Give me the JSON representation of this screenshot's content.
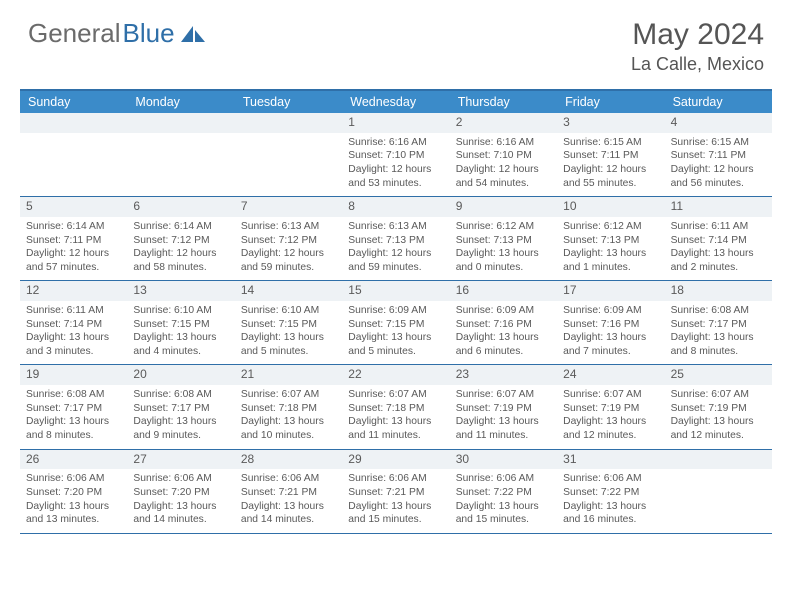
{
  "brand": {
    "part1": "General",
    "part2": "Blue"
  },
  "title": "May 2024",
  "location": "La Calle, Mexico",
  "colors": {
    "header_bg": "#3b8bc9",
    "rule": "#2f6fa8",
    "daynum_bg": "#eef2f5",
    "text": "#595959",
    "title_text": "#555555",
    "brand_gray": "#6b6b6b",
    "brand_blue": "#2f6fa8"
  },
  "day_names": [
    "Sunday",
    "Monday",
    "Tuesday",
    "Wednesday",
    "Thursday",
    "Friday",
    "Saturday"
  ],
  "weeks": [
    [
      null,
      null,
      null,
      {
        "n": "1",
        "sr": "6:16 AM",
        "ss": "7:10 PM",
        "dlh": "12",
        "dlm": "53"
      },
      {
        "n": "2",
        "sr": "6:16 AM",
        "ss": "7:10 PM",
        "dlh": "12",
        "dlm": "54"
      },
      {
        "n": "3",
        "sr": "6:15 AM",
        "ss": "7:11 PM",
        "dlh": "12",
        "dlm": "55"
      },
      {
        "n": "4",
        "sr": "6:15 AM",
        "ss": "7:11 PM",
        "dlh": "12",
        "dlm": "56"
      }
    ],
    [
      {
        "n": "5",
        "sr": "6:14 AM",
        "ss": "7:11 PM",
        "dlh": "12",
        "dlm": "57"
      },
      {
        "n": "6",
        "sr": "6:14 AM",
        "ss": "7:12 PM",
        "dlh": "12",
        "dlm": "58"
      },
      {
        "n": "7",
        "sr": "6:13 AM",
        "ss": "7:12 PM",
        "dlh": "12",
        "dlm": "59"
      },
      {
        "n": "8",
        "sr": "6:13 AM",
        "ss": "7:13 PM",
        "dlh": "12",
        "dlm": "59"
      },
      {
        "n": "9",
        "sr": "6:12 AM",
        "ss": "7:13 PM",
        "dlh": "13",
        "dlm": "0"
      },
      {
        "n": "10",
        "sr": "6:12 AM",
        "ss": "7:13 PM",
        "dlh": "13",
        "dlm": "1"
      },
      {
        "n": "11",
        "sr": "6:11 AM",
        "ss": "7:14 PM",
        "dlh": "13",
        "dlm": "2"
      }
    ],
    [
      {
        "n": "12",
        "sr": "6:11 AM",
        "ss": "7:14 PM",
        "dlh": "13",
        "dlm": "3"
      },
      {
        "n": "13",
        "sr": "6:10 AM",
        "ss": "7:15 PM",
        "dlh": "13",
        "dlm": "4"
      },
      {
        "n": "14",
        "sr": "6:10 AM",
        "ss": "7:15 PM",
        "dlh": "13",
        "dlm": "5"
      },
      {
        "n": "15",
        "sr": "6:09 AM",
        "ss": "7:15 PM",
        "dlh": "13",
        "dlm": "5"
      },
      {
        "n": "16",
        "sr": "6:09 AM",
        "ss": "7:16 PM",
        "dlh": "13",
        "dlm": "6"
      },
      {
        "n": "17",
        "sr": "6:09 AM",
        "ss": "7:16 PM",
        "dlh": "13",
        "dlm": "7"
      },
      {
        "n": "18",
        "sr": "6:08 AM",
        "ss": "7:17 PM",
        "dlh": "13",
        "dlm": "8"
      }
    ],
    [
      {
        "n": "19",
        "sr": "6:08 AM",
        "ss": "7:17 PM",
        "dlh": "13",
        "dlm": "8"
      },
      {
        "n": "20",
        "sr": "6:08 AM",
        "ss": "7:17 PM",
        "dlh": "13",
        "dlm": "9"
      },
      {
        "n": "21",
        "sr": "6:07 AM",
        "ss": "7:18 PM",
        "dlh": "13",
        "dlm": "10"
      },
      {
        "n": "22",
        "sr": "6:07 AM",
        "ss": "7:18 PM",
        "dlh": "13",
        "dlm": "11"
      },
      {
        "n": "23",
        "sr": "6:07 AM",
        "ss": "7:19 PM",
        "dlh": "13",
        "dlm": "11"
      },
      {
        "n": "24",
        "sr": "6:07 AM",
        "ss": "7:19 PM",
        "dlh": "13",
        "dlm": "12"
      },
      {
        "n": "25",
        "sr": "6:07 AM",
        "ss": "7:19 PM",
        "dlh": "13",
        "dlm": "12"
      }
    ],
    [
      {
        "n": "26",
        "sr": "6:06 AM",
        "ss": "7:20 PM",
        "dlh": "13",
        "dlm": "13"
      },
      {
        "n": "27",
        "sr": "6:06 AM",
        "ss": "7:20 PM",
        "dlh": "13",
        "dlm": "14"
      },
      {
        "n": "28",
        "sr": "6:06 AM",
        "ss": "7:21 PM",
        "dlh": "13",
        "dlm": "14"
      },
      {
        "n": "29",
        "sr": "6:06 AM",
        "ss": "7:21 PM",
        "dlh": "13",
        "dlm": "15"
      },
      {
        "n": "30",
        "sr": "6:06 AM",
        "ss": "7:22 PM",
        "dlh": "13",
        "dlm": "15"
      },
      {
        "n": "31",
        "sr": "6:06 AM",
        "ss": "7:22 PM",
        "dlh": "13",
        "dlm": "16"
      },
      null
    ]
  ],
  "labels": {
    "sunrise": "Sunrise:",
    "sunset": "Sunset:",
    "daylight": "Daylight:",
    "hours": "hours",
    "and": "and",
    "minutes": "minutes."
  }
}
